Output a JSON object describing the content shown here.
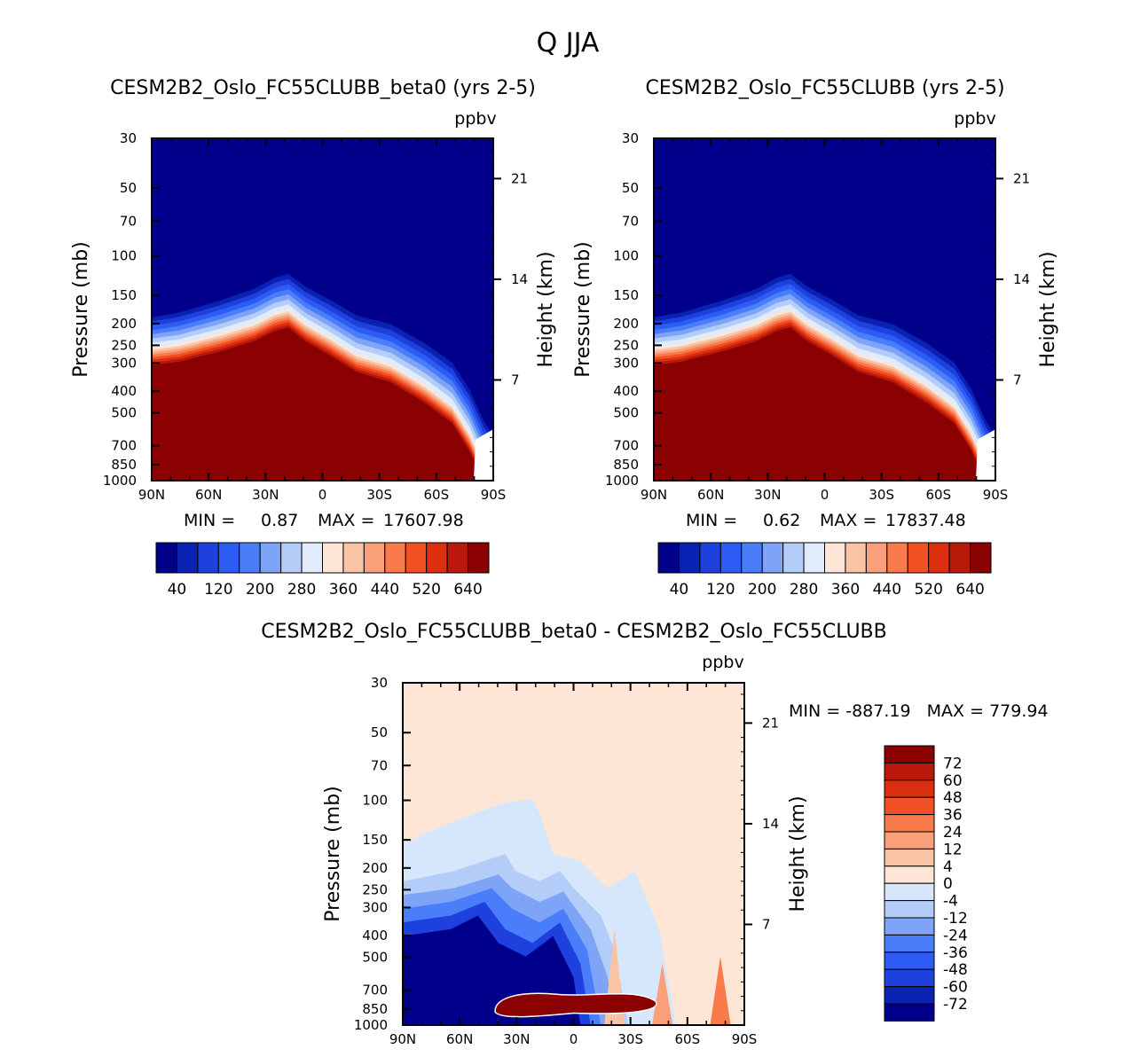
{
  "figure": {
    "title": "Q JJA",
    "panels": [
      {
        "id": "p1",
        "title": "CESM2B2_Oslo_FC55CLUBB_beta0 (yrs 2-5)",
        "units": "ppbv",
        "ylabel": "Pressure (mb)",
        "ylabel_right": "Height (km)",
        "stats": {
          "min_label": "MIN =",
          "min": "0.87",
          "max_label": "MAX =",
          "max": "17607.98"
        }
      },
      {
        "id": "p2",
        "title": "CESM2B2_Oslo_FC55CLUBB (yrs 2-5)",
        "units": "ppbv",
        "ylabel": "Pressure (mb)",
        "ylabel_right": "Height (km)",
        "stats": {
          "min_label": "MIN =",
          "min": "0.62",
          "max_label": "MAX =",
          "max": "17837.48"
        }
      },
      {
        "id": "p3",
        "title": "CESM2B2_Oslo_FC55CLUBB_beta0 - CESM2B2_Oslo_FC55CLUBB",
        "units": "ppbv",
        "ylabel": "Pressure (mb)",
        "ylabel_right": "Height (km)",
        "stats_text": "MIN = -887.19   MAX = 779.94"
      }
    ]
  },
  "chart_data": [
    {
      "type": "heatmap",
      "title": "CESM2B2_Oslo_FC55CLUBB_beta0 (yrs 2-5)",
      "xlabel": "",
      "ylabel": "Pressure (mb)",
      "y2label": "Height (km)",
      "x_tick_labels": [
        "90N",
        "60N",
        "30N",
        "0",
        "30S",
        "60S",
        "90S"
      ],
      "y_ticks": [
        30,
        50,
        70,
        100,
        150,
        200,
        250,
        300,
        400,
        500,
        700,
        850,
        1000
      ],
      "y2_ticks": [
        21,
        14,
        7
      ],
      "ylim": [
        1000,
        30
      ],
      "colorbar_levels": [
        40,
        80,
        120,
        160,
        200,
        240,
        280,
        320,
        360,
        400,
        440,
        480,
        520,
        560,
        600,
        640
      ],
      "colorbar_labels": [
        "40",
        "120",
        "200",
        "280",
        "360",
        "440",
        "520",
        "640"
      ],
      "min": 0.87,
      "max": 17607.98
    },
    {
      "type": "heatmap",
      "title": "CESM2B2_Oslo_FC55CLUBB (yrs 2-5)",
      "xlabel": "",
      "ylabel": "Pressure (mb)",
      "y2label": "Height (km)",
      "x_tick_labels": [
        "90N",
        "60N",
        "30N",
        "0",
        "30S",
        "60S",
        "90S"
      ],
      "y_ticks": [
        30,
        50,
        70,
        100,
        150,
        200,
        250,
        300,
        400,
        500,
        700,
        850,
        1000
      ],
      "y2_ticks": [
        21,
        14,
        7
      ],
      "ylim": [
        1000,
        30
      ],
      "colorbar_levels": [
        40,
        80,
        120,
        160,
        200,
        240,
        280,
        320,
        360,
        400,
        440,
        480,
        520,
        560,
        600,
        640
      ],
      "colorbar_labels": [
        "40",
        "120",
        "200",
        "280",
        "360",
        "440",
        "520",
        "640"
      ],
      "min": 0.62,
      "max": 17837.48
    },
    {
      "type": "heatmap",
      "title": "CESM2B2_Oslo_FC55CLUBB_beta0 - CESM2B2_Oslo_FC55CLUBB",
      "xlabel": "",
      "ylabel": "Pressure (mb)",
      "y2label": "Height (km)",
      "x_tick_labels": [
        "90N",
        "60N",
        "30N",
        "0",
        "30S",
        "60S",
        "90S"
      ],
      "y_ticks": [
        30,
        50,
        70,
        100,
        150,
        200,
        250,
        300,
        400,
        500,
        700,
        850,
        1000
      ],
      "y2_ticks": [
        21,
        14,
        7
      ],
      "ylim": [
        1000,
        30
      ],
      "colorbar_labels": [
        "72",
        "60",
        "48",
        "36",
        "24",
        "12",
        "4",
        "0",
        "-4",
        "-12",
        "-24",
        "-36",
        "-48",
        "-60",
        "-72"
      ],
      "min": -887.19,
      "max": 779.94
    }
  ],
  "colors": {
    "seq": [
      "#00008b",
      "#0a22b4",
      "#1e40dc",
      "#2d5cf5",
      "#4a7dfa",
      "#7ea4f7",
      "#b4ccf8",
      "#e0ecfb",
      "#fde6d6",
      "#f9c3a6",
      "#f9a07a",
      "#f97a4a",
      "#f24f24",
      "#db2f10",
      "#b8190a",
      "#8b0000"
    ],
    "div": [
      "#8b0000",
      "#b8190a",
      "#db2f10",
      "#f24f24",
      "#f97a4a",
      "#f9a07a",
      "#f9c3a6",
      "#fde6d6",
      "#d6e6fb",
      "#b4ccf8",
      "#7ea4f7",
      "#4a7dfa",
      "#2d5cf5",
      "#1e40dc",
      "#0a22b4",
      "#00008b"
    ],
    "panel_bg_seq": "#00008b",
    "panel_bg_diff": "#fde6d6"
  }
}
